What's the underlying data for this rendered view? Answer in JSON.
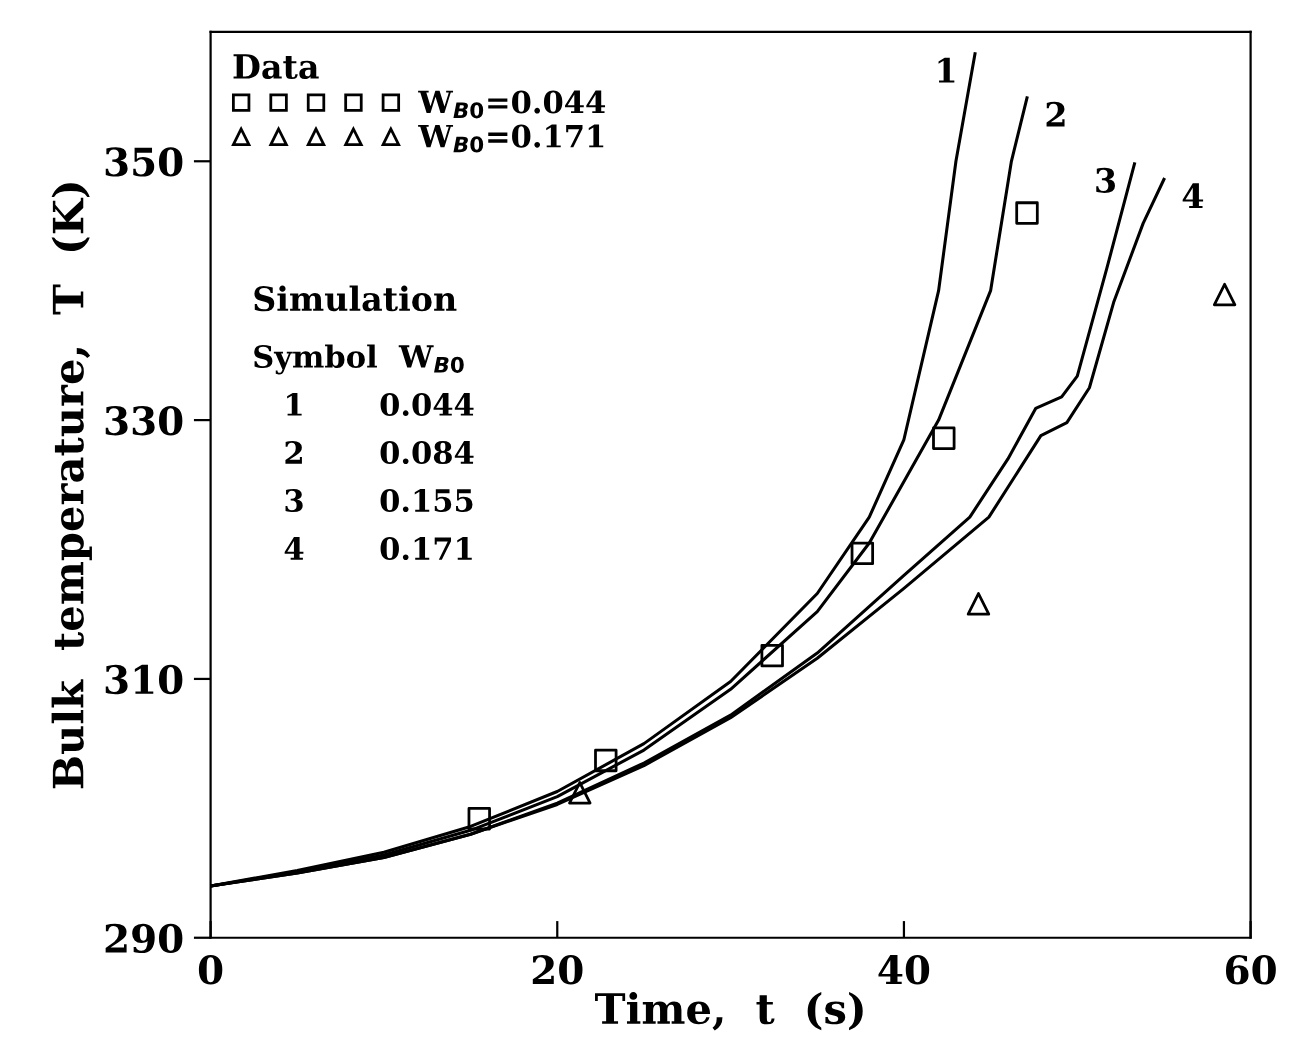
{
  "chart_data": {
    "type": "line",
    "xlabel": "Time,  t  (s)",
    "ylabel": "Bulk  temperature,  T  (K)",
    "xlim": [
      0,
      60
    ],
    "ylim": [
      290,
      360
    ],
    "xticks": [
      0,
      20,
      40,
      60
    ],
    "yticks": [
      290,
      310,
      330,
      350
    ],
    "grid": false,
    "legend": "top left",
    "legend_title": "Data",
    "series": [
      {
        "name": "1",
        "color": "#000000",
        "marker": "none",
        "x": [
          0,
          5,
          10,
          15,
          20,
          25,
          30,
          35,
          38,
          40,
          42,
          43,
          44.1
        ],
        "values": [
          294,
          295.2,
          296.6,
          298.6,
          301.3,
          305,
          309.8,
          316.6,
          322.5,
          328.5,
          340,
          350,
          358.3
        ]
      },
      {
        "name": "2",
        "color": "#000000",
        "marker": "none",
        "x": [
          0,
          5,
          10,
          15,
          20,
          25,
          30,
          35,
          38,
          42,
          45,
          46.2,
          47.1
        ],
        "values": [
          294,
          295.1,
          296.4,
          298.3,
          300.9,
          304.5,
          309.2,
          315.2,
          320.5,
          330,
          340,
          350,
          354.9
        ]
      },
      {
        "name": "3",
        "color": "#000000",
        "marker": "none",
        "x": [
          0,
          5,
          10,
          15,
          20,
          25,
          30,
          35,
          40,
          43.8,
          46,
          47.6,
          49.1,
          50,
          51.7,
          53.3
        ],
        "values": [
          294,
          295,
          296.2,
          298,
          300.4,
          303.5,
          307.2,
          312,
          318,
          322.5,
          327,
          330.9,
          331.8,
          333.4,
          341.7,
          349.8
        ]
      },
      {
        "name": "4",
        "color": "#000000",
        "marker": "none",
        "x": [
          0,
          5,
          10,
          15,
          20,
          25,
          30,
          35,
          40,
          44.9,
          47.9,
          49.4,
          50.7,
          52.1,
          53.8,
          55.0
        ],
        "values": [
          294,
          295,
          296.2,
          298,
          300.3,
          303.3,
          307,
          311.6,
          317,
          322.5,
          328.8,
          329.8,
          332.5,
          339.1,
          345.2,
          348.6
        ]
      },
      {
        "name": "W$_{B0}$=0.044",
        "type": "scatter",
        "color": "#000000",
        "marker": "square",
        "x": [
          15.5,
          22.8,
          32.4,
          37.6,
          42.3,
          47.1
        ],
        "values": [
          299.2,
          303.7,
          311.8,
          319.7,
          328.6,
          346
        ]
      },
      {
        "name": "W$_{B0}$=0.171",
        "type": "scatter",
        "color": "#000000",
        "marker": "triangle",
        "x": [
          21.3,
          44.3,
          58.5
        ],
        "values": [
          301.2,
          315.8,
          339.7
        ]
      }
    ],
    "annotations": [
      "Simulation",
      "Symbol  W$_{B0}$",
      "1       0.044",
      "2       0.084",
      "3       0.155",
      "4       0.171"
    ]
  }
}
